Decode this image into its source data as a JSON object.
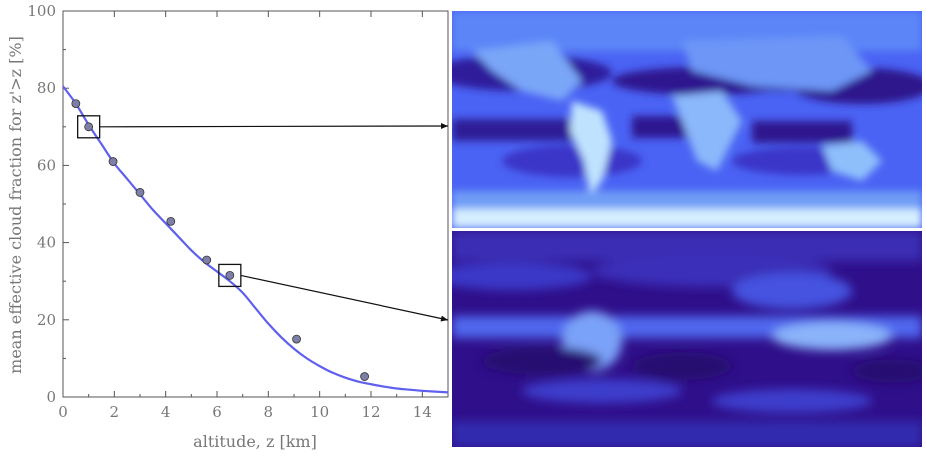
{
  "chart_data": {
    "type": "scatter",
    "xlabel": "altitude, z [km]",
    "ylabel": "mean effective cloud fraction for z'>z [%]",
    "xlim": [
      0,
      15
    ],
    "ylim": [
      0,
      100
    ],
    "xticks": [
      0,
      2,
      4,
      6,
      8,
      10,
      12,
      14
    ],
    "yticks": [
      0,
      20,
      40,
      60,
      80,
      100
    ],
    "grid": false,
    "series": [
      {
        "kind": "points",
        "x": [
          0.5,
          1.0,
          1.95,
          3.0,
          4.2,
          5.6,
          6.5,
          9.1,
          11.75
        ],
        "y": [
          76,
          70,
          61,
          53,
          45.5,
          35.5,
          31.5,
          15,
          5.3
        ]
      },
      {
        "kind": "fit-line",
        "x": [
          0,
          0.5,
          1,
          1.5,
          2,
          2.5,
          3,
          3.5,
          4,
          4.5,
          5,
          5.5,
          6,
          6.5,
          7,
          7.5,
          8,
          8.5,
          9,
          9.5,
          10,
          10.5,
          11,
          11.5,
          12,
          12.5,
          13,
          13.5,
          14,
          14.5,
          15
        ],
        "y": [
          80.5,
          76,
          70.5,
          65.5,
          60.5,
          56.5,
          52.5,
          48.5,
          45,
          41.5,
          38,
          35,
          32.5,
          30,
          27,
          23,
          19,
          15.5,
          12.5,
          10,
          8,
          6.3,
          5,
          4,
          3.3,
          2.7,
          2.2,
          1.9,
          1.6,
          1.4,
          1.2
        ]
      }
    ],
    "highlighted_points": [
      {
        "x": 1.0,
        "y": 70
      },
      {
        "x": 6.5,
        "y": 31.5
      }
    ]
  },
  "colors": {
    "fit_line": "#5f60ee",
    "point_fill": "#7d7fa6",
    "point_stroke": "#333333",
    "axis": "#555555",
    "map_ocean_dark": "#2f0d8a",
    "map_mid": "#3a4ef5",
    "map_light": "#cfeaff"
  },
  "maps": [
    {
      "name": "cloud-fraction-map-low-altitude",
      "linked_point": 0
    },
    {
      "name": "cloud-fraction-map-high-altitude",
      "linked_point": 1
    }
  ]
}
